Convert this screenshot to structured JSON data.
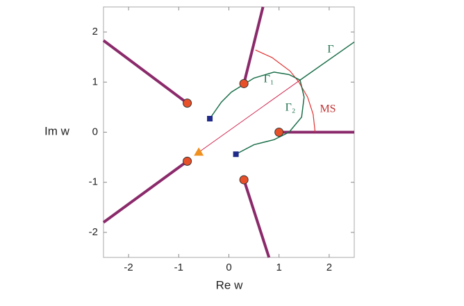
{
  "chart_data": {
    "type": "scatter",
    "xlabel": "Re w",
    "ylabel": "Im w",
    "xlim": [
      -2.5,
      2.5
    ],
    "ylim": [
      -2.5,
      2.5
    ],
    "xticks": [
      -2,
      -1,
      0,
      1,
      2
    ],
    "yticks": [
      -2,
      -1,
      0,
      1,
      2
    ],
    "annotations": [
      "Γ",
      "Γ₁",
      "Γ₂",
      "MS"
    ],
    "series": [
      {
        "kind": "line",
        "width": 4,
        "color": "#8b2a6b",
        "x": [
          0.3,
          0.68,
          null,
          -0.83,
          -2.5,
          null,
          1.0,
          2.5,
          null,
          -0.83,
          -2.5,
          null,
          0.3,
          0.8
        ],
        "y": [
          0.97,
          2.5,
          null,
          0.58,
          1.83,
          null,
          0.0,
          0.0,
          null,
          -0.58,
          -1.8,
          null,
          -0.95,
          -2.5
        ]
      },
      {
        "kind": "line",
        "width": 1.5,
        "color": "#1a6e4a",
        "x": [
          2.5,
          1.42
        ],
        "y": [
          1.8,
          1.04
        ]
      },
      {
        "kind": "line",
        "width": 1,
        "color": "#d0204a",
        "x": [
          -0.6,
          1.42
        ],
        "y": [
          -0.4,
          1.04
        ]
      },
      {
        "kind": "line",
        "width": 1.2,
        "color": "#e03030",
        "x": [
          0.53,
          0.86,
          1.22,
          1.39,
          1.57,
          1.68,
          1.72
        ],
        "y": [
          1.64,
          1.49,
          1.22,
          1.01,
          0.7,
          0.36,
          0.0
        ]
      },
      {
        "kind": "line",
        "width": 1.5,
        "color": "#1a6e4a",
        "x": [
          1.42,
          1.2,
          0.9,
          0.5,
          0.05,
          -0.15,
          -0.38
        ],
        "y": [
          1.04,
          1.15,
          1.2,
          1.08,
          0.8,
          0.6,
          0.27
        ]
      },
      {
        "kind": "line",
        "width": 1.5,
        "color": "#1a6e4a",
        "x": [
          1.42,
          1.5,
          1.45,
          1.2,
          0.9,
          0.5,
          0.14
        ],
        "y": [
          1.04,
          0.7,
          0.3,
          0.0,
          -0.15,
          -0.25,
          -0.44
        ]
      },
      {
        "kind": "circle",
        "color": "#e8502a",
        "x": [
          0.3,
          -0.83,
          1.0,
          -0.83,
          0.3
        ],
        "y": [
          0.97,
          0.58,
          0.0,
          -0.58,
          -0.95
        ]
      },
      {
        "kind": "square",
        "color": "#1f2a8a",
        "x": [
          -0.38,
          0.14
        ],
        "y": [
          0.27,
          -0.44
        ]
      },
      {
        "kind": "triangle",
        "color": "#f0901e",
        "x": [
          -0.6
        ],
        "y": [
          -0.4
        ]
      }
    ]
  }
}
